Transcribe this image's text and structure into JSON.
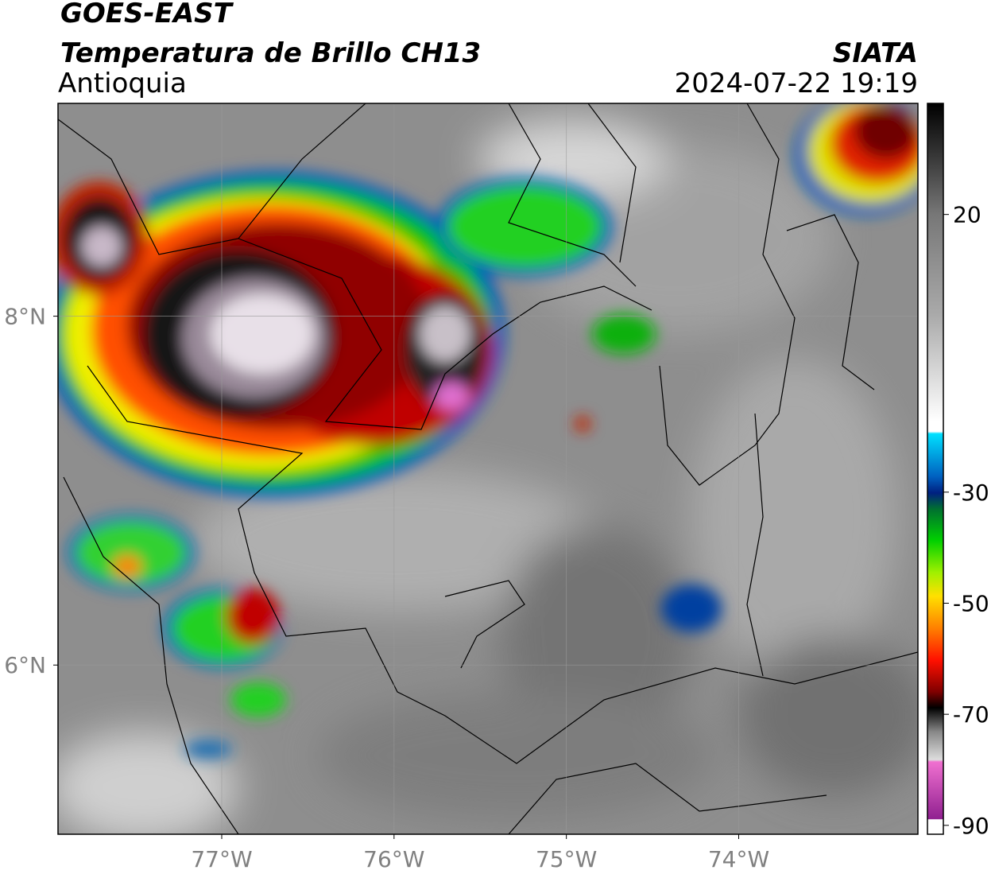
{
  "header": {
    "title": "GOES-EAST",
    "subtitle": "Temperatura de Brillo CH13",
    "region": "Antioquia",
    "source": "SIATA",
    "datetime": "2024-07-22 19:19"
  },
  "map": {
    "xlim": [
      -77.95,
      -72.96
    ],
    "ylim": [
      5.03,
      9.22
    ],
    "xticks": [
      {
        "value": -77,
        "label": "77°W"
      },
      {
        "value": -76,
        "label": "76°W"
      },
      {
        "value": -75,
        "label": "75°W"
      },
      {
        "value": -74,
        "label": "74°W"
      }
    ],
    "yticks": [
      {
        "value": 6,
        "label": "6°N"
      },
      {
        "value": 8,
        "label": "8°N"
      }
    ],
    "grid": true
  },
  "colorbar": {
    "lim": [
      -91.6,
      40
    ],
    "ticks": [
      20,
      -30,
      -50,
      -70,
      -90
    ]
  }
}
